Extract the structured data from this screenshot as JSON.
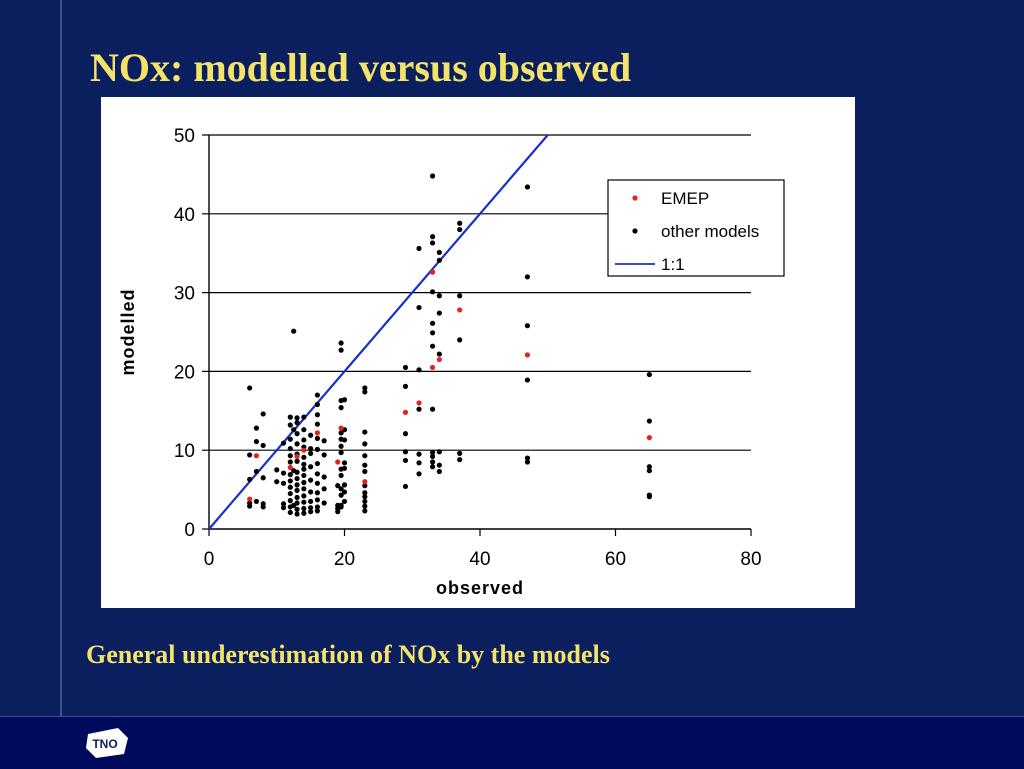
{
  "slide": {
    "title": "NOx: modelled versus observed",
    "caption": "General underestimation of NOx by the models",
    "logo_text": "TNO",
    "background_color": "#0b1f5e",
    "title_color": "#f4e36a"
  },
  "chart_data": {
    "type": "scatter",
    "xlabel": "observed",
    "ylabel": "modelled",
    "xlim": [
      0,
      80
    ],
    "ylim": [
      0,
      50
    ],
    "x_ticks": [
      0,
      20,
      40,
      60,
      80
    ],
    "y_ticks": [
      0,
      10,
      20,
      30,
      40,
      50
    ],
    "grid": "horizontal",
    "legend_position": "top-right",
    "legend": [
      "EMEP",
      "other models",
      "1:1"
    ],
    "series": [
      {
        "name": "EMEP",
        "color": "#e8201e",
        "points": [
          [
            6,
            3.8
          ],
          [
            7,
            9.3
          ],
          [
            12,
            7.8
          ],
          [
            13,
            9.2
          ],
          [
            14,
            10
          ],
          [
            16,
            12.2
          ],
          [
            19,
            8.5
          ],
          [
            19.5,
            12.8
          ],
          [
            23,
            6
          ],
          [
            29,
            14.8
          ],
          [
            31,
            16
          ],
          [
            33,
            32.6
          ],
          [
            33,
            20.5
          ],
          [
            34,
            21.5
          ],
          [
            37,
            27.8
          ],
          [
            47,
            22.1
          ],
          [
            65,
            11.6
          ]
        ]
      },
      {
        "name": "other models",
        "color": "#000000",
        "points": [
          [
            6,
            17.9
          ],
          [
            6,
            9.4
          ],
          [
            6,
            6.3
          ],
          [
            6,
            3.3
          ],
          [
            6,
            2.9
          ],
          [
            7,
            12.8
          ],
          [
            7,
            11.1
          ],
          [
            7,
            7.3
          ],
          [
            7,
            3.5
          ],
          [
            8,
            14.6
          ],
          [
            8,
            10.6
          ],
          [
            8,
            6.5
          ],
          [
            8,
            3.2
          ],
          [
            8,
            2.8
          ],
          [
            10,
            6
          ],
          [
            10,
            7.5
          ],
          [
            11,
            10.9
          ],
          [
            11,
            7.1
          ],
          [
            11,
            5.8
          ],
          [
            11,
            3.2
          ],
          [
            11,
            2.7
          ],
          [
            12,
            14.2
          ],
          [
            12,
            13.2
          ],
          [
            12,
            11.4
          ],
          [
            12,
            10.2
          ],
          [
            12,
            9.3
          ],
          [
            12,
            8.5
          ],
          [
            12,
            6.9
          ],
          [
            12,
            6.1
          ],
          [
            12,
            5.3
          ],
          [
            12,
            4.5
          ],
          [
            12,
            3.6
          ],
          [
            12,
            2.8
          ],
          [
            12,
            2.1
          ],
          [
            12.5,
            25.1
          ],
          [
            12.5,
            12.6
          ],
          [
            12.5,
            7.4
          ],
          [
            12.5,
            3
          ],
          [
            13,
            14.1
          ],
          [
            13,
            13.5
          ],
          [
            13,
            12.1
          ],
          [
            13,
            10.8
          ],
          [
            13,
            9.5
          ],
          [
            13,
            8.6
          ],
          [
            13,
            7.2
          ],
          [
            13,
            6.4
          ],
          [
            13,
            5.6
          ],
          [
            13,
            4.9
          ],
          [
            13,
            4
          ],
          [
            13,
            3.3
          ],
          [
            13,
            2.5
          ],
          [
            13,
            1.9
          ],
          [
            14,
            14.2
          ],
          [
            14,
            12.6
          ],
          [
            14,
            11.3
          ],
          [
            14,
            10.4
          ],
          [
            14,
            9.1
          ],
          [
            14,
            8.2
          ],
          [
            14,
            7.6
          ],
          [
            14,
            6.8
          ],
          [
            14,
            5.9
          ],
          [
            14,
            5.1
          ],
          [
            14,
            4.2
          ],
          [
            14,
            3.4
          ],
          [
            14,
            2.6
          ],
          [
            14,
            2
          ],
          [
            15,
            11.9
          ],
          [
            15,
            10.2
          ],
          [
            15,
            9.6
          ],
          [
            15,
            7.9
          ],
          [
            15,
            6.2
          ],
          [
            15,
            4.7
          ],
          [
            15,
            3.5
          ],
          [
            15,
            2.7
          ],
          [
            15,
            2.2
          ],
          [
            16,
            17
          ],
          [
            16,
            15.8
          ],
          [
            16,
            14.5
          ],
          [
            16,
            13.3
          ],
          [
            16,
            11.5
          ],
          [
            16,
            10.1
          ],
          [
            16,
            8.3
          ],
          [
            16,
            7
          ],
          [
            16,
            5.8
          ],
          [
            16,
            4.6
          ],
          [
            16,
            3.7
          ],
          [
            16,
            2.8
          ],
          [
            16,
            2.3
          ],
          [
            17,
            11.2
          ],
          [
            17,
            9.4
          ],
          [
            17,
            6.6
          ],
          [
            17,
            5.1
          ],
          [
            17,
            3.3
          ],
          [
            19,
            3
          ],
          [
            19,
            2.6
          ],
          [
            19,
            2.2
          ],
          [
            19,
            5.5
          ],
          [
            19.5,
            23.6
          ],
          [
            19.5,
            22.7
          ],
          [
            19.5,
            16.3
          ],
          [
            19.5,
            15.4
          ],
          [
            19.5,
            12.2
          ],
          [
            19.5,
            11.4
          ],
          [
            19.5,
            10.5
          ],
          [
            19.5,
            9.7
          ],
          [
            19.5,
            7.6
          ],
          [
            19.5,
            6.8
          ],
          [
            19.5,
            5.1
          ],
          [
            19.5,
            4.3
          ],
          [
            19.5,
            3
          ],
          [
            19.5,
            2.8
          ],
          [
            20,
            16.4
          ],
          [
            20,
            12.6
          ],
          [
            20,
            11.3
          ],
          [
            20,
            8.4
          ],
          [
            20,
            7.7
          ],
          [
            20,
            5.6
          ],
          [
            20,
            4.7
          ],
          [
            20,
            3.5
          ],
          [
            23,
            17.9
          ],
          [
            23,
            17.4
          ],
          [
            23,
            12.3
          ],
          [
            23,
            10.8
          ],
          [
            23,
            9.3
          ],
          [
            23,
            8.1
          ],
          [
            23,
            7.3
          ],
          [
            23,
            5.5
          ],
          [
            23,
            4.6
          ],
          [
            23,
            4.1
          ],
          [
            23,
            3.5
          ],
          [
            23,
            2.9
          ],
          [
            23,
            2.3
          ],
          [
            29,
            20.5
          ],
          [
            29,
            18.1
          ],
          [
            29,
            12.1
          ],
          [
            29,
            9.8
          ],
          [
            29,
            8.7
          ],
          [
            29,
            5.4
          ],
          [
            31,
            35.6
          ],
          [
            31,
            28.1
          ],
          [
            31,
            20.2
          ],
          [
            31,
            15.2
          ],
          [
            31,
            9.5
          ],
          [
            31,
            8.4
          ],
          [
            31,
            7
          ],
          [
            33,
            44.8
          ],
          [
            33,
            37.1
          ],
          [
            33,
            36.3
          ],
          [
            33,
            30.1
          ],
          [
            33,
            26.1
          ],
          [
            33,
            24.9
          ],
          [
            33,
            23.2
          ],
          [
            33,
            15.2
          ],
          [
            33,
            9.7
          ],
          [
            33,
            9.2
          ],
          [
            33,
            8.5
          ],
          [
            33,
            7.9
          ],
          [
            34,
            35.1
          ],
          [
            34,
            34.1
          ],
          [
            34,
            29.6
          ],
          [
            34,
            27.4
          ],
          [
            34,
            22.2
          ],
          [
            34,
            9.8
          ],
          [
            34,
            8.1
          ],
          [
            34,
            7.3
          ],
          [
            37,
            38.8
          ],
          [
            37,
            38
          ],
          [
            37,
            29.6
          ],
          [
            37,
            24
          ],
          [
            37,
            9.6
          ],
          [
            37,
            8.8
          ],
          [
            47,
            43.4
          ],
          [
            47,
            32
          ],
          [
            47,
            25.8
          ],
          [
            47,
            18.9
          ],
          [
            47,
            9
          ],
          [
            47,
            8.5
          ],
          [
            65,
            19.6
          ],
          [
            65,
            13.7
          ],
          [
            65,
            7.9
          ],
          [
            65,
            7.4
          ],
          [
            65,
            4.3
          ],
          [
            65,
            4.1
          ]
        ]
      },
      {
        "name": "1:1",
        "color": "#1830c8",
        "line": [
          [
            0,
            0
          ],
          [
            50,
            50
          ]
        ]
      }
    ]
  }
}
